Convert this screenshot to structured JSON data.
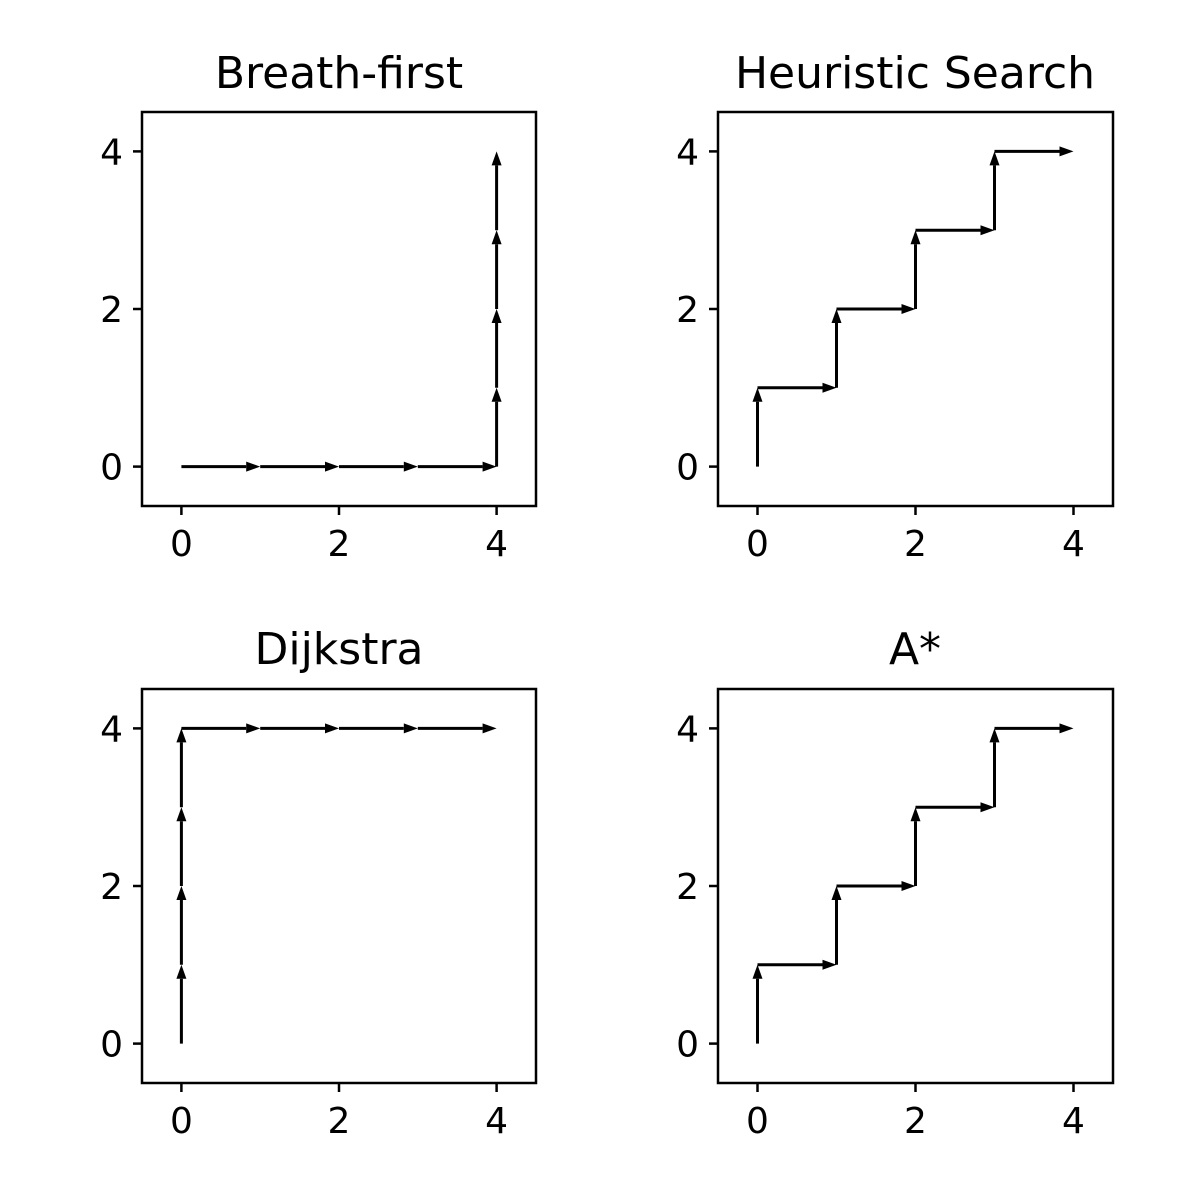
{
  "chart_data": [
    {
      "type": "quiver",
      "title": "Breath-first",
      "xlim": [
        -0.5,
        4.5
      ],
      "ylim": [
        -0.5,
        4.5
      ],
      "xticks": [
        0,
        2,
        4
      ],
      "yticks": [
        0,
        2,
        4
      ],
      "grid": false,
      "path": [
        [
          0,
          0
        ],
        [
          1,
          0
        ],
        [
          2,
          0
        ],
        [
          3,
          0
        ],
        [
          4,
          0
        ],
        [
          4,
          1
        ],
        [
          4,
          2
        ],
        [
          4,
          3
        ],
        [
          4,
          4
        ]
      ]
    },
    {
      "type": "quiver",
      "title": "Heuristic Search",
      "xlim": [
        -0.5,
        4.5
      ],
      "ylim": [
        -0.5,
        4.5
      ],
      "xticks": [
        0,
        2,
        4
      ],
      "yticks": [
        0,
        2,
        4
      ],
      "grid": false,
      "path": [
        [
          0,
          0
        ],
        [
          0,
          1
        ],
        [
          1,
          1
        ],
        [
          1,
          2
        ],
        [
          2,
          2
        ],
        [
          2,
          3
        ],
        [
          3,
          3
        ],
        [
          3,
          4
        ],
        [
          4,
          4
        ]
      ]
    },
    {
      "type": "quiver",
      "title": "Dijkstra",
      "xlim": [
        -0.5,
        4.5
      ],
      "ylim": [
        -0.5,
        4.5
      ],
      "xticks": [
        0,
        2,
        4
      ],
      "yticks": [
        0,
        2,
        4
      ],
      "grid": false,
      "path": [
        [
          0,
          0
        ],
        [
          0,
          1
        ],
        [
          0,
          2
        ],
        [
          0,
          3
        ],
        [
          0,
          4
        ],
        [
          1,
          4
        ],
        [
          2,
          4
        ],
        [
          3,
          4
        ],
        [
          4,
          4
        ]
      ]
    },
    {
      "type": "quiver",
      "title": "A*",
      "xlim": [
        -0.5,
        4.5
      ],
      "ylim": [
        -0.5,
        4.5
      ],
      "xticks": [
        0,
        2,
        4
      ],
      "yticks": [
        0,
        2,
        4
      ],
      "grid": false,
      "path": [
        [
          0,
          0
        ],
        [
          0,
          1
        ],
        [
          1,
          1
        ],
        [
          1,
          2
        ],
        [
          2,
          2
        ],
        [
          2,
          3
        ],
        [
          3,
          3
        ],
        [
          3,
          4
        ],
        [
          4,
          4
        ]
      ]
    }
  ]
}
